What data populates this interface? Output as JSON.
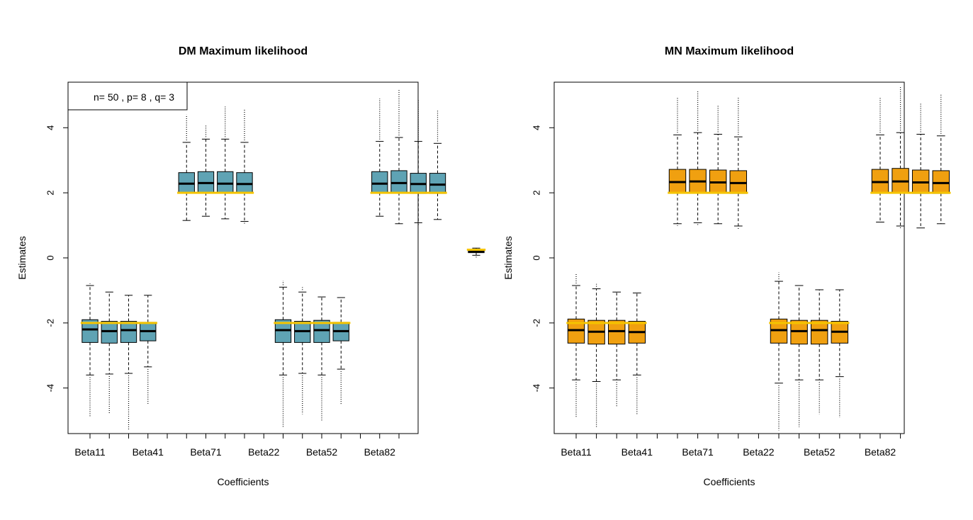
{
  "chart_data": [
    {
      "type": "boxplot",
      "title": "DM Maximum likelihood",
      "xlabel": "Coefficients",
      "ylabel": "Estimates",
      "ylim": [
        -5.4,
        5.4
      ],
      "y_ticks": [
        -4,
        -2,
        0,
        2,
        4
      ],
      "x_tick_labels": [
        "Beta11",
        "Beta41",
        "Beta71",
        "Beta22",
        "Beta52",
        "Beta82"
      ],
      "legend": {
        "text": "n= 50 , p= 8 , q= 3",
        "position": "top-left"
      },
      "box_color": "#5fa3b4",
      "true_value_color": "#f5c400",
      "groups": [
        {
          "true_value": -2,
          "boxes": [
            {
              "q1": -2.6,
              "median": -2.2,
              "q3": -1.9,
              "lower": -3.6,
              "upper": -0.85,
              "out_low": -4.9,
              "out_high": -0.8
            },
            {
              "q1": -2.62,
              "median": -2.25,
              "q3": -1.95,
              "lower": -3.57,
              "upper": -1.05,
              "out_low": -4.8,
              "out_high": -1.05
            },
            {
              "q1": -2.6,
              "median": -2.22,
              "q3": -1.95,
              "lower": -3.55,
              "upper": -1.15,
              "out_low": -5.3,
              "out_high": -1.15
            },
            {
              "q1": -2.55,
              "median": -2.25,
              "q3": -1.98,
              "lower": -3.35,
              "upper": -1.15,
              "out_low": -4.5,
              "out_high": -1.15
            }
          ]
        },
        {
          "true_value": 2,
          "boxes": [
            {
              "q1": 2.0,
              "median": 2.28,
              "q3": 2.62,
              "lower": 1.15,
              "upper": 3.55,
              "out_low": 1.15,
              "out_high": 4.4
            },
            {
              "q1": 2.0,
              "median": 2.3,
              "q3": 2.65,
              "lower": 1.28,
              "upper": 3.65,
              "out_low": 1.28,
              "out_high": 4.1
            },
            {
              "q1": 2.0,
              "median": 2.28,
              "q3": 2.65,
              "lower": 1.2,
              "upper": 3.65,
              "out_low": 1.2,
              "out_high": 4.65
            },
            {
              "q1": 2.0,
              "median": 2.27,
              "q3": 2.62,
              "lower": 1.12,
              "upper": 3.55,
              "out_low": 1.08,
              "out_high": 4.55
            }
          ]
        },
        {
          "true_value": -2,
          "boxes": [
            {
              "q1": -2.6,
              "median": -2.22,
              "q3": -1.9,
              "lower": -3.6,
              "upper": -0.9,
              "out_low": -5.2,
              "out_high": -0.7
            },
            {
              "q1": -2.6,
              "median": -2.25,
              "q3": -1.95,
              "lower": -3.55,
              "upper": -1.05,
              "out_low": -4.8,
              "out_high": -0.9
            },
            {
              "q1": -2.6,
              "median": -2.22,
              "q3": -1.92,
              "lower": -3.6,
              "upper": -1.2,
              "out_low": -5.0,
              "out_high": -1.2
            },
            {
              "q1": -2.55,
              "median": -2.25,
              "q3": -1.98,
              "lower": -3.42,
              "upper": -1.22,
              "out_low": -4.5,
              "out_high": -1.22
            }
          ]
        },
        {
          "true_value": 2,
          "boxes": [
            {
              "q1": 2.0,
              "median": 2.28,
              "q3": 2.65,
              "lower": 1.28,
              "upper": 3.58,
              "out_low": 1.28,
              "out_high": 4.9
            },
            {
              "q1": 2.0,
              "median": 2.3,
              "q3": 2.68,
              "lower": 1.05,
              "upper": 3.7,
              "out_low": 1.05,
              "out_high": 5.2
            },
            {
              "q1": 1.98,
              "median": 2.27,
              "q3": 2.6,
              "lower": 1.08,
              "upper": 3.58,
              "out_low": 1.05,
              "out_high": 4.85
            },
            {
              "q1": 1.98,
              "median": 2.25,
              "q3": 2.6,
              "lower": 1.18,
              "upper": 3.52,
              "out_low": 1.18,
              "out_high": 4.55
            }
          ]
        },
        {
          "true_value": 0.25,
          "boxes": [
            {
              "q1": 0.16,
              "median": 0.2,
              "q3": 0.24,
              "lower": 0.08,
              "upper": 0.3,
              "out_low": 0.05,
              "out_high": 0.32
            }
          ]
        }
      ]
    },
    {
      "type": "boxplot",
      "title": "MN Maximum likelihood",
      "xlabel": "Coefficients",
      "ylabel": "Estimates",
      "ylim": [
        -5.4,
        5.4
      ],
      "y_ticks": [
        -4,
        -2,
        0,
        2,
        4
      ],
      "x_tick_labels": [
        "Beta11",
        "Beta41",
        "Beta71",
        "Beta22",
        "Beta52",
        "Beta82"
      ],
      "box_color": "#f0a010",
      "true_value_color": "#f5c400",
      "groups": [
        {
          "true_value": -2,
          "boxes": [
            {
              "q1": -2.62,
              "median": -2.22,
              "q3": -1.88,
              "lower": -3.75,
              "upper": -0.85,
              "out_low": -4.9,
              "out_high": -0.5
            },
            {
              "q1": -2.65,
              "median": -2.27,
              "q3": -1.92,
              "lower": -3.8,
              "upper": -0.95,
              "out_low": -5.2,
              "out_high": -0.8
            },
            {
              "q1": -2.65,
              "median": -2.25,
              "q3": -1.92,
              "lower": -3.75,
              "upper": -1.05,
              "out_low": -4.6,
              "out_high": -1.05
            },
            {
              "q1": -2.62,
              "median": -2.28,
              "q3": -1.95,
              "lower": -3.6,
              "upper": -1.08,
              "out_low": -4.8,
              "out_high": -1.08
            }
          ]
        },
        {
          "true_value": 2,
          "boxes": [
            {
              "q1": 2.0,
              "median": 2.33,
              "q3": 2.72,
              "lower": 1.05,
              "upper": 3.78,
              "out_low": 1.0,
              "out_high": 4.95
            },
            {
              "q1": 2.0,
              "median": 2.35,
              "q3": 2.72,
              "lower": 1.08,
              "upper": 3.85,
              "out_low": 1.05,
              "out_high": 5.15
            },
            {
              "q1": 2.0,
              "median": 2.32,
              "q3": 2.7,
              "lower": 1.05,
              "upper": 3.8,
              "out_low": 1.05,
              "out_high": 4.7
            },
            {
              "q1": 1.98,
              "median": 2.3,
              "q3": 2.68,
              "lower": 0.98,
              "upper": 3.72,
              "out_low": 0.85,
              "out_high": 4.95
            }
          ]
        },
        {
          "true_value": -2,
          "boxes": [
            {
              "q1": -2.62,
              "median": -2.22,
              "q3": -1.88,
              "lower": -3.85,
              "upper": -0.72,
              "out_low": -5.3,
              "out_high": -0.45
            },
            {
              "q1": -2.65,
              "median": -2.25,
              "q3": -1.92,
              "lower": -3.75,
              "upper": -0.85,
              "out_low": -5.2,
              "out_high": -0.85
            },
            {
              "q1": -2.65,
              "median": -2.22,
              "q3": -1.92,
              "lower": -3.75,
              "upper": -0.98,
              "out_low": -4.8,
              "out_high": -0.98
            },
            {
              "q1": -2.62,
              "median": -2.27,
              "q3": -1.95,
              "lower": -3.65,
              "upper": -0.98,
              "out_low": -4.9,
              "out_high": -0.98
            }
          ]
        },
        {
          "true_value": 2,
          "boxes": [
            {
              "q1": 2.0,
              "median": 2.33,
              "q3": 2.72,
              "lower": 1.1,
              "upper": 3.78,
              "out_low": 1.1,
              "out_high": 4.95
            },
            {
              "q1": 2.0,
              "median": 2.35,
              "q3": 2.75,
              "lower": 0.98,
              "upper": 3.85,
              "out_low": 0.95,
              "out_high": 5.25
            },
            {
              "q1": 1.98,
              "median": 2.32,
              "q3": 2.7,
              "lower": 0.92,
              "upper": 3.8,
              "out_low": 0.92,
              "out_high": 4.75
            },
            {
              "q1": 1.98,
              "median": 2.3,
              "q3": 2.68,
              "lower": 1.05,
              "upper": 3.75,
              "out_low": 1.05,
              "out_high": 5.05
            }
          ]
        }
      ]
    }
  ]
}
